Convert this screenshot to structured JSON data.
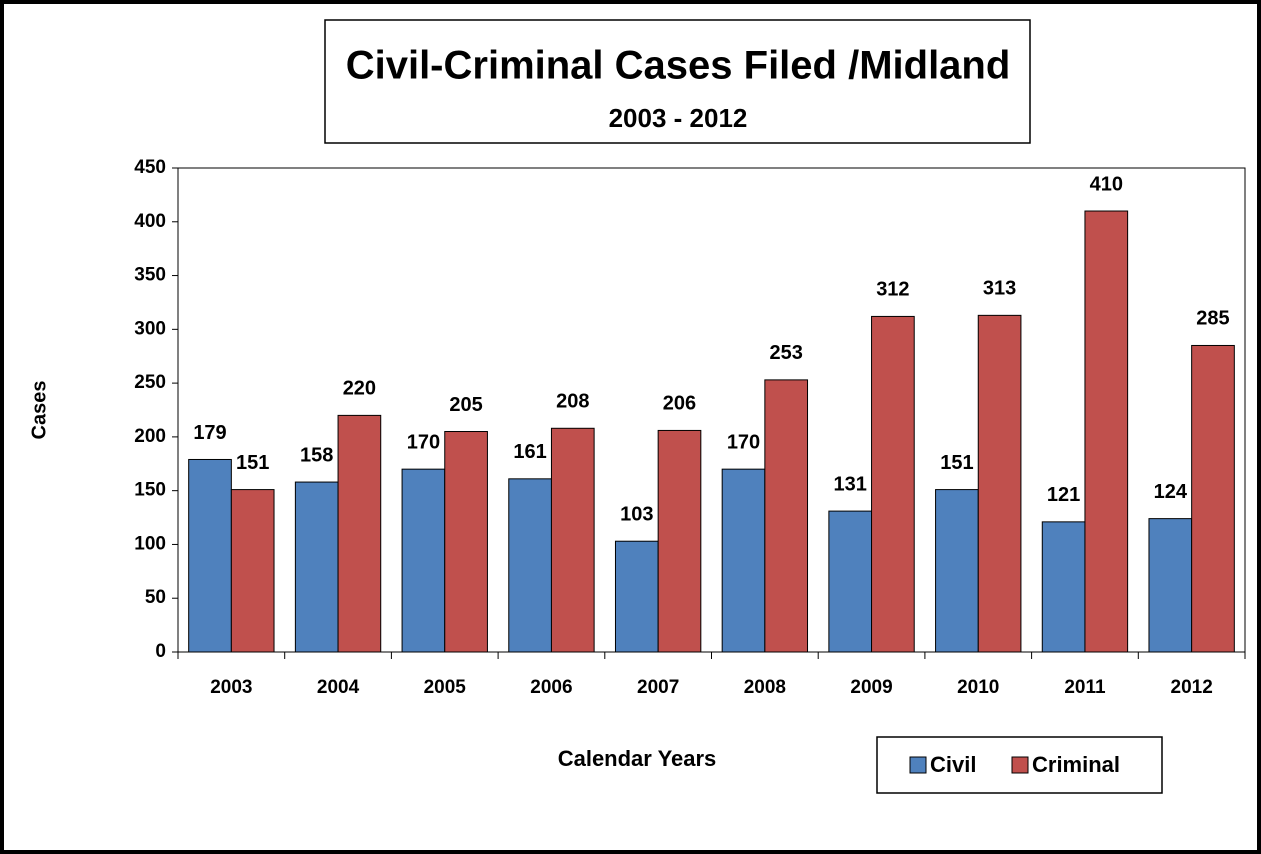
{
  "chart_data": {
    "type": "bar",
    "title": "Civil-Criminal Cases Filed /Midland",
    "subtitle": "2003 - 2012",
    "xlabel": "Calendar Years",
    "ylabel": "Cases",
    "categories": [
      "2003",
      "2004",
      "2005",
      "2006",
      "2007",
      "2008",
      "2009",
      "2010",
      "2011",
      "2012"
    ],
    "series": [
      {
        "name": "Civil",
        "color": "#4f81bd",
        "values": [
          179,
          158,
          170,
          161,
          103,
          170,
          131,
          151,
          121,
          124
        ]
      },
      {
        "name": "Criminal",
        "color": "#c0504d",
        "values": [
          151,
          220,
          205,
          208,
          206,
          253,
          312,
          313,
          410,
          285
        ]
      }
    ],
    "ylim": [
      0,
      450
    ],
    "yticks": [
      0,
      50,
      100,
      150,
      200,
      250,
      300,
      350,
      400,
      450
    ],
    "grid": false
  }
}
